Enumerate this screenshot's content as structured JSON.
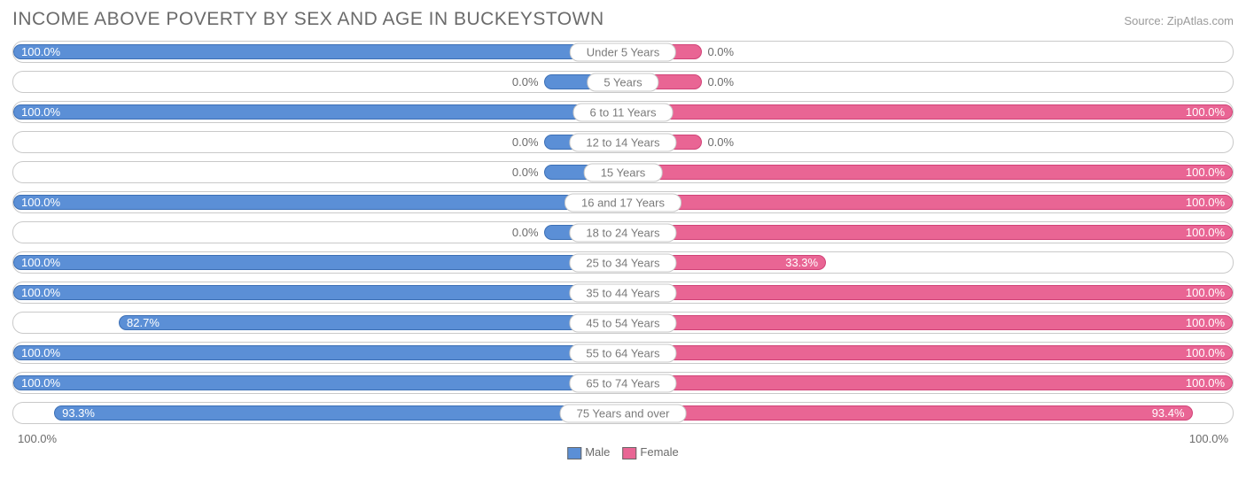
{
  "title": "INCOME ABOVE POVERTY BY SEX AND AGE IN BUCKEYSTOWN",
  "source": "Source: ZipAtlas.com",
  "colors": {
    "male_fill": "#5b8fd6",
    "male_stroke": "#3c6fb5",
    "female_fill": "#e96594",
    "female_stroke": "#d14277",
    "track_border": "#c9c9c9",
    "text": "#6b6b6b",
    "bg": "#ffffff"
  },
  "min_bar_pct": 13,
  "label_inside_threshold": 20,
  "axis": {
    "left": "100.0%",
    "right": "100.0%"
  },
  "legend": {
    "male": "Male",
    "female": "Female"
  },
  "rows": [
    {
      "category": "Under 5 Years",
      "male": 100.0,
      "female": 0.0,
      "male_label": "100.0%",
      "female_label": "0.0%"
    },
    {
      "category": "5 Years",
      "male": 0.0,
      "female": 0.0,
      "male_label": "0.0%",
      "female_label": "0.0%"
    },
    {
      "category": "6 to 11 Years",
      "male": 100.0,
      "female": 100.0,
      "male_label": "100.0%",
      "female_label": "100.0%"
    },
    {
      "category": "12 to 14 Years",
      "male": 0.0,
      "female": 0.0,
      "male_label": "0.0%",
      "female_label": "0.0%"
    },
    {
      "category": "15 Years",
      "male": 0.0,
      "female": 100.0,
      "male_label": "0.0%",
      "female_label": "100.0%"
    },
    {
      "category": "16 and 17 Years",
      "male": 100.0,
      "female": 100.0,
      "male_label": "100.0%",
      "female_label": "100.0%"
    },
    {
      "category": "18 to 24 Years",
      "male": 0.0,
      "female": 100.0,
      "male_label": "0.0%",
      "female_label": "100.0%"
    },
    {
      "category": "25 to 34 Years",
      "male": 100.0,
      "female": 33.3,
      "male_label": "100.0%",
      "female_label": "33.3%"
    },
    {
      "category": "35 to 44 Years",
      "male": 100.0,
      "female": 100.0,
      "male_label": "100.0%",
      "female_label": "100.0%"
    },
    {
      "category": "45 to 54 Years",
      "male": 82.7,
      "female": 100.0,
      "male_label": "82.7%",
      "female_label": "100.0%"
    },
    {
      "category": "55 to 64 Years",
      "male": 100.0,
      "female": 100.0,
      "male_label": "100.0%",
      "female_label": "100.0%"
    },
    {
      "category": "65 to 74 Years",
      "male": 100.0,
      "female": 100.0,
      "male_label": "100.0%",
      "female_label": "100.0%"
    },
    {
      "category": "75 Years and over",
      "male": 93.3,
      "female": 93.4,
      "male_label": "93.3%",
      "female_label": "93.4%"
    }
  ]
}
